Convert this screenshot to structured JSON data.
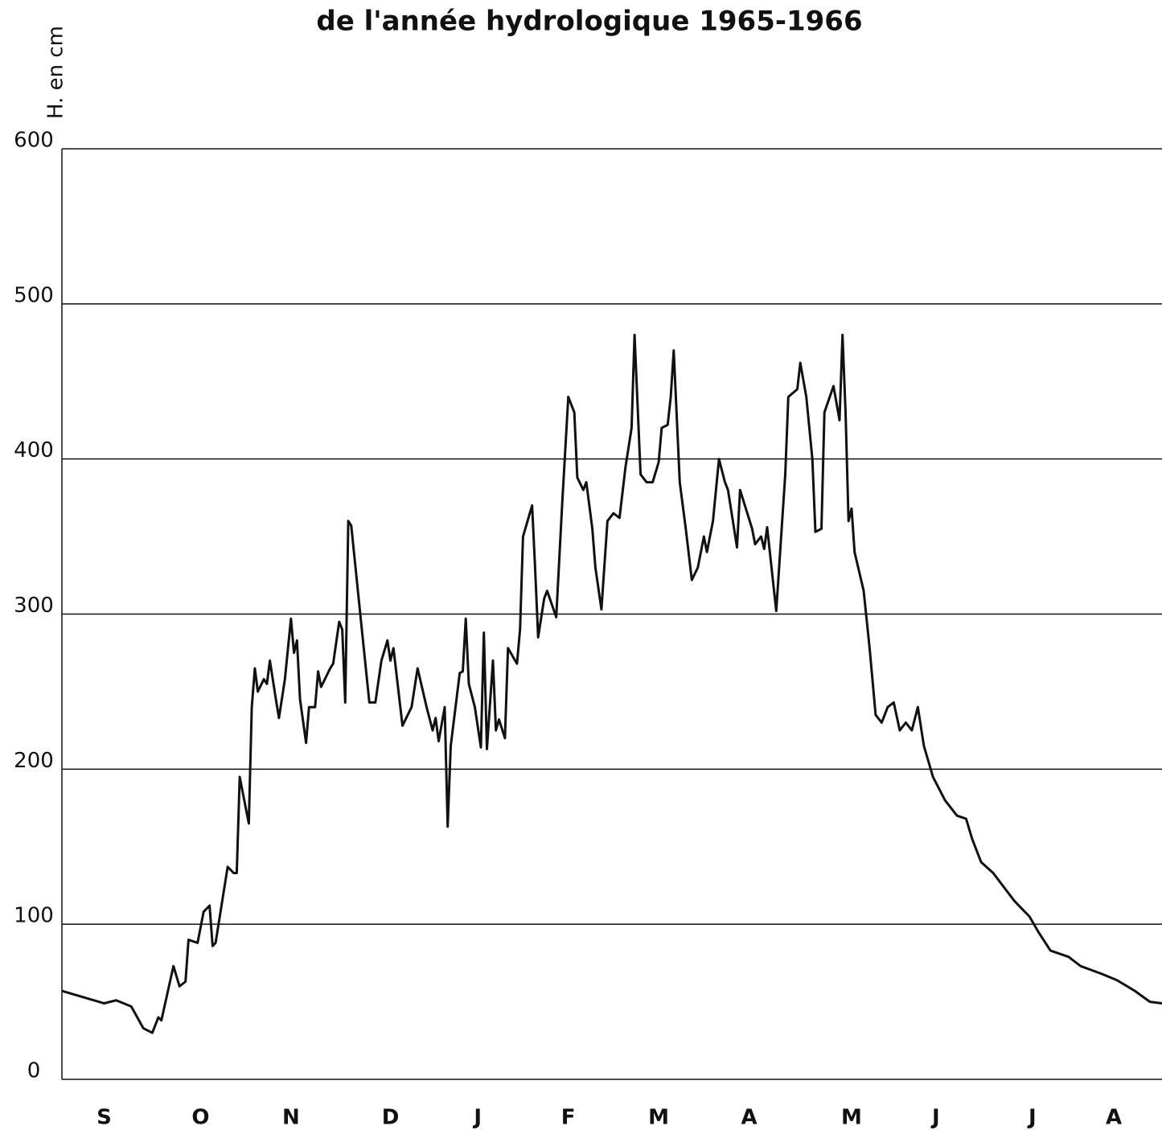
{
  "chart_data": {
    "type": "line",
    "title": "de l'année hydrologique 1965-1966",
    "ylabel": "H. en cm",
    "color": "#111111",
    "grid": true,
    "xlim": [
      0,
      365
    ],
    "ylim": [
      0,
      600
    ],
    "yticks": [
      0,
      100,
      200,
      300,
      400,
      500,
      600
    ],
    "xticks": [
      {
        "value": 14,
        "label": "S"
      },
      {
        "value": 46,
        "label": "O"
      },
      {
        "value": 76,
        "label": "N"
      },
      {
        "value": 109,
        "label": "D"
      },
      {
        "value": 138,
        "label": "J"
      },
      {
        "value": 168,
        "label": "F"
      },
      {
        "value": 198,
        "label": "M"
      },
      {
        "value": 228,
        "label": "A"
      },
      {
        "value": 262,
        "label": "M"
      },
      {
        "value": 290,
        "label": "J"
      },
      {
        "value": 322,
        "label": "J"
      },
      {
        "value": 349,
        "label": "A"
      }
    ],
    "x": [
      0,
      14,
      18,
      23,
      27,
      30,
      32,
      33,
      37,
      39,
      41,
      42,
      45,
      47,
      49,
      50,
      51,
      55,
      57,
      58,
      59,
      61,
      62,
      63,
      64,
      65,
      67,
      68,
      69,
      71,
      72,
      74,
      76,
      77,
      78,
      79,
      81,
      82,
      84,
      85,
      86,
      89,
      90,
      92,
      93,
      94,
      95,
      96,
      99,
      102,
      104,
      106,
      108,
      109,
      110,
      113,
      116,
      118,
      121,
      123,
      124,
      125,
      127,
      128,
      129,
      132,
      133,
      134,
      135,
      137,
      139,
      140,
      141,
      143,
      144,
      145,
      147,
      148,
      151,
      152,
      153,
      156,
      157,
      158,
      160,
      161,
      164,
      166,
      168,
      170,
      171,
      173,
      174,
      176,
      177,
      179,
      181,
      183,
      185,
      187,
      189,
      190,
      192,
      194,
      196,
      198,
      199,
      201,
      202,
      203,
      205,
      207,
      209,
      211,
      213,
      214,
      216,
      218,
      220,
      221,
      224,
      225,
      229,
      230,
      232,
      233,
      234,
      236,
      237,
      240,
      241,
      244,
      245,
      247,
      249,
      250,
      252,
      253,
      256,
      258,
      259,
      260,
      261,
      262,
      263,
      266,
      268,
      270,
      272,
      274,
      276,
      278,
      280,
      282,
      284,
      286,
      289,
      293,
      297,
      300,
      302,
      305,
      309,
      316,
      321,
      324,
      328,
      334,
      338,
      345,
      350,
      356,
      361,
      365
    ],
    "values": [
      57,
      49,
      51,
      47,
      33,
      30,
      40,
      38,
      73,
      60,
      63,
      90,
      88,
      108,
      112,
      86,
      88,
      137,
      133,
      133,
      195,
      175,
      165,
      240,
      265,
      250,
      258,
      255,
      270,
      245,
      233,
      258,
      297,
      275,
      283,
      245,
      217,
      240,
      240,
      263,
      253,
      265,
      268,
      295,
      290,
      243,
      360,
      357,
      300,
      243,
      243,
      270,
      283,
      270,
      278,
      228,
      240,
      265,
      240,
      225,
      233,
      218,
      240,
      163,
      215,
      262,
      263,
      297,
      255,
      240,
      214,
      288,
      213,
      270,
      225,
      232,
      220,
      278,
      268,
      290,
      350,
      370,
      330,
      285,
      310,
      315,
      298,
      372,
      440,
      430,
      388,
      380,
      385,
      355,
      330,
      303,
      360,
      365,
      362,
      395,
      420,
      480,
      390,
      385,
      385,
      398,
      420,
      422,
      440,
      470,
      385,
      355,
      322,
      330,
      350,
      340,
      360,
      400,
      385,
      380,
      343,
      380,
      355,
      345,
      350,
      342,
      356,
      320,
      302,
      390,
      440,
      445,
      462,
      440,
      400,
      353,
      355,
      430,
      447,
      425,
      480,
      430,
      360,
      368,
      340,
      315,
      278,
      235,
      230,
      240,
      243,
      225,
      230,
      225,
      240,
      215,
      195,
      180,
      170,
      168,
      155,
      140,
      133,
      115,
      105,
      95,
      83,
      79,
      73,
      68,
      64,
      57,
      50,
      49
    ]
  }
}
